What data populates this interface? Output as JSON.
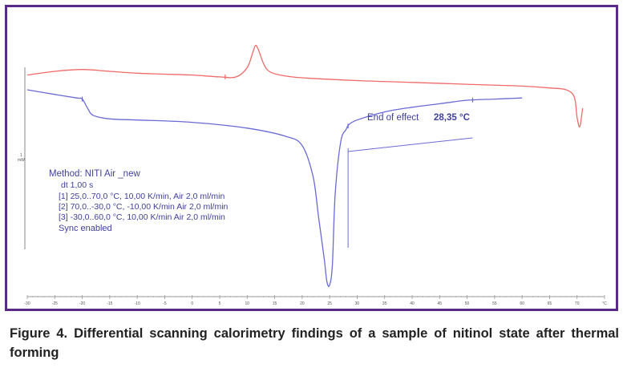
{
  "chart_data": {
    "type": "line",
    "title": "",
    "xlabel": "",
    "ylabel": "",
    "x_unit": "°C",
    "y_unit": "mW",
    "y_scale_label": "1",
    "xlim": [
      -30,
      75
    ],
    "x_ticks": [
      -30,
      -25,
      -20,
      -15,
      -10,
      -5,
      0,
      5,
      10,
      15,
      20,
      25,
      30,
      35,
      40,
      45,
      50,
      55,
      60,
      65,
      70,
      75
    ],
    "grid": false,
    "series": [
      {
        "color": "#f06a6a",
        "x": [
          -30,
          -25,
          -20,
          -15,
          -10,
          -5,
          0,
          5,
          8,
          10,
          11,
          11.5,
          12,
          13,
          14,
          16,
          20,
          30,
          40,
          50,
          60,
          65,
          68,
          69.5,
          70,
          70.5,
          71
        ],
        "y": [
          -2,
          0,
          1,
          0,
          -1,
          -1.5,
          -2,
          -3,
          -3,
          2,
          10,
          14,
          12,
          4,
          0,
          -2,
          -3.5,
          -5,
          -6,
          -7,
          -8,
          -9,
          -10,
          -14,
          -25,
          -30,
          -20
        ]
      },
      {
        "color": "#6a6ad6",
        "x": [
          -30,
          -25,
          -21,
          -20,
          -19,
          -18,
          -15,
          -10,
          0,
          10,
          17,
          20,
          22,
          23,
          24,
          24.5,
          25,
          25.5,
          26,
          27,
          28,
          28.5,
          30,
          35,
          40,
          45,
          50,
          55,
          60
        ],
        "y": [
          0,
          -4,
          -7,
          -8,
          -16,
          -22,
          -25,
          -26,
          -28,
          -33,
          -40,
          -48,
          -75,
          -110,
          -145,
          -165,
          -168,
          -150,
          -90,
          -45,
          -34,
          -30,
          -26,
          -19,
          -15,
          -12,
          -9,
          -8,
          -7
        ]
      }
    ],
    "annotation": {
      "text": "End of effect",
      "value": "28,35 °C",
      "x": 28.35
    }
  },
  "method_block": {
    "line1": "Method: NITI Air _new",
    "line2": "dt 1,00 s",
    "line3": "[1] 25,0..70,0 °C, 10,00 K/min, Air 2,0 ml/min",
    "line4": "[2] 70,0..-30,0 °C, -10,00 K/min  Air 2,0 ml/min",
    "line5": "[3] -30,0..60,0 °C, 10,00 K/min   Air 2,0 ml/min",
    "line6": "Sync enabled"
  },
  "caption": {
    "label": "Figure 4.",
    "text": " Differential scanning calorimetry findings of a sample of nitinol state after thermal forming"
  },
  "colors": {
    "frame": "#5b2a86",
    "heating_curve": "#f06a6a",
    "cooling_curve": "#6a6ad6",
    "text": "#4040a0"
  }
}
